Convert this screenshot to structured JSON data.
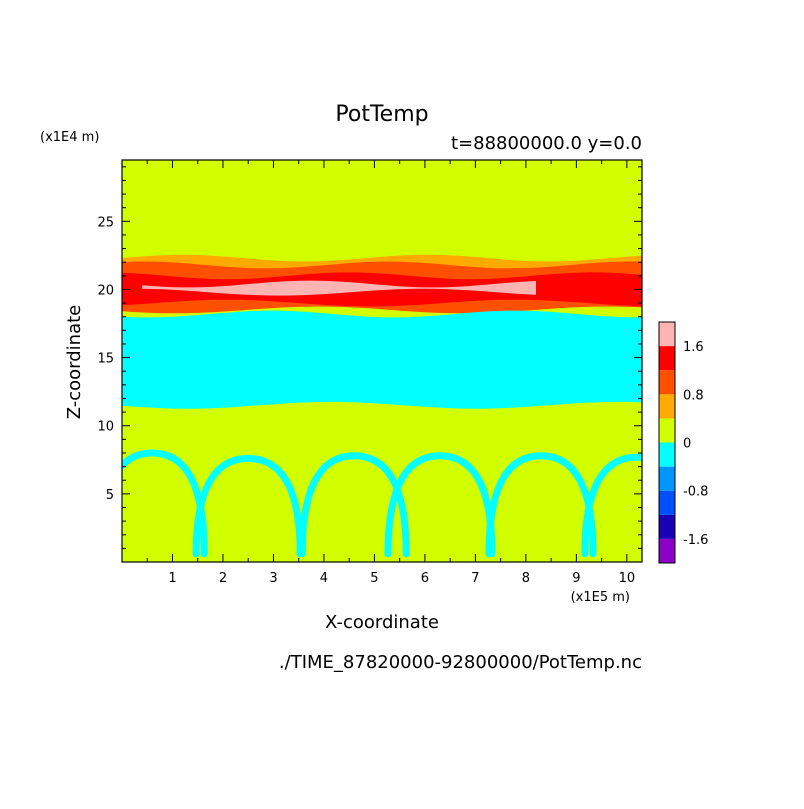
{
  "chart_data": {
    "type": "heatmap",
    "title": "PotTemp",
    "subtitle": "t=88800000.0 y=0.0",
    "xlabel": "X-coordinate",
    "ylabel": "Z-coordinate",
    "x_unit_label": "(x1E5 m)",
    "y_unit_label": "(x1E4 m)",
    "footer": "./TIME_87820000-92800000/PotTemp.nc",
    "xlim": [
      0,
      10.3
    ],
    "ylim": [
      0,
      29.5
    ],
    "x_ticks": [
      1,
      2,
      3,
      4,
      5,
      6,
      7,
      8,
      9,
      10
    ],
    "y_ticks": [
      5,
      10,
      15,
      20,
      25
    ],
    "colorbar": {
      "levels": [
        -2.0,
        -1.6,
        -1.2,
        -0.8,
        -0.4,
        0,
        0.4,
        0.8,
        1.2,
        1.6,
        2.0
      ],
      "colors": [
        "#8c00c8",
        "#1a00b4",
        "#0050ff",
        "#0096ff",
        "#00ffff",
        "#d2ff00",
        "#ffaa00",
        "#ff5000",
        "#ff0000",
        "#ffb4b4"
      ],
      "tick_labels": [
        "-1.6",
        "-0.8",
        "0",
        "0.8",
        "1.6"
      ],
      "tick_values": [
        -1.6,
        -0.8,
        0,
        0.8,
        1.6
      ]
    },
    "background_value": 0.2,
    "bands": [
      {
        "z_bottom": 20.2,
        "z_top": 22.3,
        "value": 0.6
      },
      {
        "z_bottom": 18.5,
        "z_top": 21.8,
        "value": 1.0
      },
      {
        "z_bottom": 19.0,
        "z_top": 21.0,
        "value": 1.4
      },
      {
        "z_bottom": 19.8,
        "z_top": 20.4,
        "value": 1.8,
        "x_start": 0.4,
        "x_end": 8.2
      },
      {
        "z_bottom": 11.5,
        "z_top": 18.2,
        "value": -0.2
      }
    ],
    "plumes": [
      {
        "x_center": 2.5,
        "z_top": 7.6,
        "value": -0.2
      },
      {
        "x_center": 4.6,
        "z_top": 7.8,
        "value": -0.2
      },
      {
        "x_center": 6.3,
        "z_top": 7.8,
        "value": -0.2
      },
      {
        "x_center": 8.3,
        "z_top": 7.8,
        "value": -0.2
      },
      {
        "x_center": 0.6,
        "z_top": 8.0,
        "value": -0.2
      },
      {
        "x_center": 10.2,
        "z_top": 7.7,
        "value": -0.2
      }
    ]
  }
}
